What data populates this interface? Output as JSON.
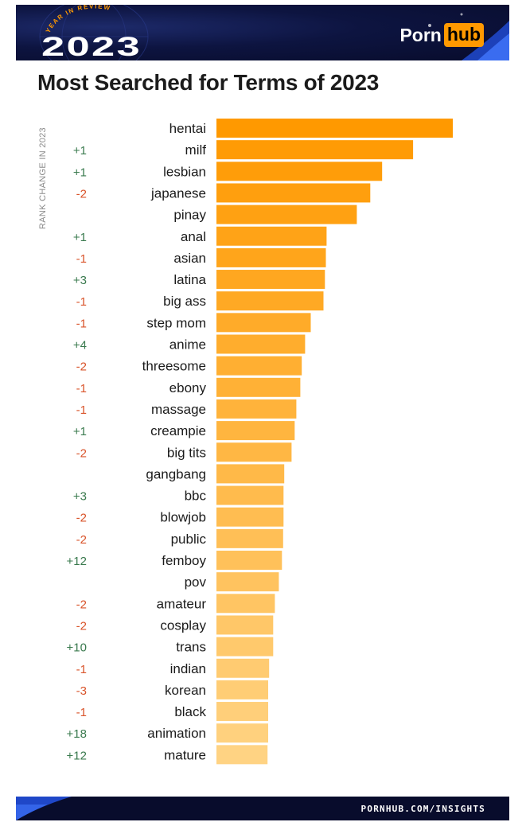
{
  "header": {
    "badge_arc": "YEAR IN REVIEW",
    "badge_year": "2023",
    "brand_part1": "Porn",
    "brand_part2": "hub"
  },
  "title": "Most Searched for Terms of 2023",
  "rank_axis_label": "RANK CHANGE IN 2023",
  "footer": {
    "link": "PORNHUB.COM/INSIGHTS"
  },
  "colors": {
    "bar_top": "#ff9900",
    "bar_bottom": "#ffd383",
    "positive_change": "#3a7a4e",
    "negative_change": "#d9542b",
    "header_bg": "#0a0f35",
    "brand_accent": "#ff9900"
  },
  "chart_data": {
    "type": "bar",
    "orientation": "horizontal",
    "title": "Most Searched for Terms of 2023",
    "xlabel": "",
    "ylabel": "",
    "xlim": [
      0,
      100
    ],
    "value_scale": "relative (top term = 100, estimated from bar lengths)",
    "grid": false,
    "legend": "none",
    "categories": [
      "hentai",
      "milf",
      "lesbian",
      "japanese",
      "pinay",
      "anal",
      "asian",
      "latina",
      "big ass",
      "step mom",
      "anime",
      "threesome",
      "ebony",
      "massage",
      "creampie",
      "big tits",
      "gangbang",
      "bbc",
      "blowjob",
      "public",
      "femboy",
      "pov",
      "amateur",
      "cosplay",
      "trans",
      "indian",
      "korean",
      "black",
      "animation",
      "mature"
    ],
    "values": [
      100,
      83.2,
      70.1,
      65.1,
      59.4,
      46.6,
      46.3,
      45.9,
      45.3,
      39.9,
      37.5,
      36.1,
      35.5,
      33.8,
      33.1,
      31.8,
      28.7,
      28.4,
      28.4,
      28.2,
      27.7,
      26.4,
      24.7,
      24.0,
      24.0,
      22.3,
      21.9,
      21.9,
      21.9,
      21.6
    ],
    "rank_change": [
      "",
      "+1",
      "+1",
      "-2",
      "",
      "+1",
      "-1",
      "+3",
      "-1",
      "-1",
      "+4",
      "-2",
      "-1",
      "-1",
      "+1",
      "-2",
      "",
      "+3",
      "-2",
      "-2",
      "+12",
      "",
      "-2",
      "-2",
      "+10",
      "-1",
      "-3",
      "-1",
      "+18",
      "+12"
    ]
  }
}
